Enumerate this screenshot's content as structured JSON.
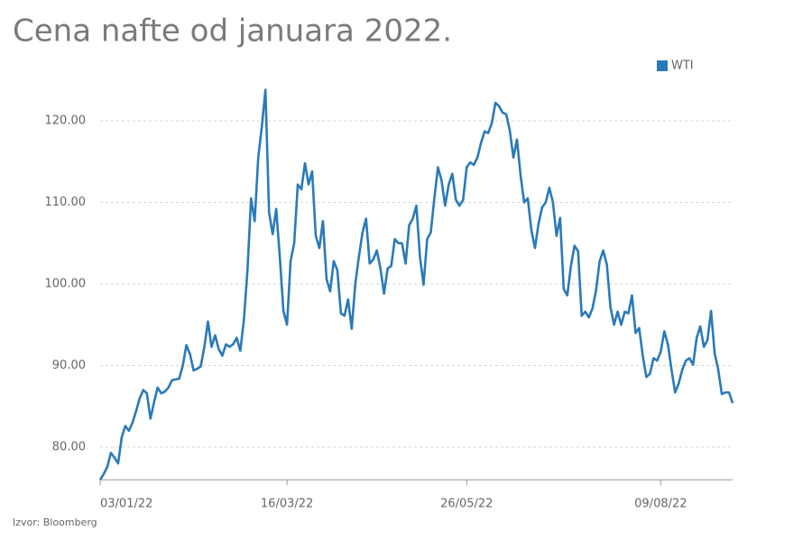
{
  "chart_data": {
    "type": "line",
    "title": "Cena nafte od januara 2022.",
    "source": "Izvor: Bloomberg",
    "categories": [
      "03/01/22",
      null,
      null,
      null,
      null,
      null,
      null,
      null,
      null,
      null,
      null,
      null,
      null,
      null,
      null,
      null,
      null,
      null,
      null,
      null,
      null,
      null,
      null,
      null,
      null,
      null,
      null,
      null,
      null,
      null,
      null,
      null,
      null,
      null,
      null,
      null,
      null,
      null,
      null,
      null,
      null,
      null,
      null,
      null,
      null,
      null,
      null,
      null,
      null,
      null,
      null,
      null,
      "16/03/22",
      null,
      null,
      null,
      null,
      null,
      null,
      null,
      null,
      null,
      null,
      null,
      null,
      null,
      null,
      null,
      null,
      null,
      null,
      null,
      null,
      null,
      null,
      null,
      null,
      null,
      null,
      null,
      null,
      null,
      null,
      null,
      null,
      null,
      null,
      null,
      null,
      null,
      null,
      null,
      null,
      null,
      null,
      null,
      null,
      null,
      null,
      null,
      null,
      null,
      "26/05/22",
      null,
      null,
      null,
      null,
      null,
      null,
      null,
      null,
      null,
      null,
      null,
      null,
      null,
      null,
      null,
      null,
      null,
      null,
      null,
      null,
      null,
      null,
      null,
      null,
      null,
      null,
      null,
      null,
      null,
      null,
      null,
      null,
      null,
      null,
      null,
      null,
      null,
      null,
      null,
      null,
      null,
      null,
      null,
      null,
      null,
      null,
      null,
      null,
      null,
      null,
      null,
      null,
      null,
      "09/08/22",
      null,
      null,
      null,
      null,
      null,
      null,
      null,
      null,
      null,
      null,
      null,
      null,
      null,
      null,
      null,
      null,
      null,
      null,
      null,
      null
    ],
    "series": [
      {
        "name": "WTI",
        "color": "#2a7ab9",
        "values": [
          76.0,
          76.7,
          77.6,
          79.3,
          78.7,
          78.0,
          81.2,
          82.6,
          82.0,
          83.0,
          84.4,
          86.0,
          87.0,
          86.6,
          83.5,
          85.5,
          87.3,
          86.6,
          86.8,
          87.3,
          88.2,
          88.3,
          88.4,
          90.0,
          92.5,
          91.4,
          89.4,
          89.6,
          89.9,
          92.3,
          95.4,
          92.3,
          93.7,
          92.0,
          91.2,
          92.6,
          92.3,
          92.6,
          93.4,
          91.8,
          95.6,
          101.7,
          110.5,
          107.7,
          115.5,
          119.3,
          123.8,
          108.8,
          106.1,
          109.2,
          103.3,
          96.7,
          95.0,
          102.8,
          105.0,
          112.2,
          111.6,
          114.8,
          112.2,
          113.8,
          105.9,
          104.4,
          107.7,
          100.6,
          99.1,
          102.8,
          101.7,
          96.4,
          96.1,
          98.1,
          94.5,
          100.0,
          103.3,
          106.3,
          108.0,
          102.5,
          103.0,
          104.1,
          101.9,
          98.8,
          101.9,
          102.2,
          105.5,
          105.0,
          105.0,
          102.5,
          107.2,
          108.0,
          109.6,
          103.3,
          99.9,
          105.5,
          106.3,
          110.5,
          114.3,
          112.7,
          109.6,
          112.2,
          113.5,
          110.3,
          109.6,
          110.3,
          114.3,
          114.9,
          114.6,
          115.5,
          117.3,
          118.7,
          118.5,
          119.7,
          122.2,
          121.8,
          121.0,
          120.8,
          118.8,
          115.5,
          117.7,
          113.3,
          110.0,
          110.5,
          106.6,
          104.4,
          107.4,
          109.4,
          110.0,
          111.8,
          110.0,
          105.9,
          108.1,
          99.4,
          98.6,
          102.2,
          104.7,
          104.0,
          96.1,
          96.6,
          95.9,
          97.0,
          99.2,
          102.8,
          104.1,
          102.4,
          97.2,
          95.0,
          96.6,
          95.0,
          96.6,
          96.4,
          98.6,
          94.0,
          94.6,
          91.2,
          88.6,
          89.0,
          90.9,
          90.6,
          91.7,
          94.2,
          92.6,
          89.5,
          86.7,
          87.8,
          89.5,
          90.6,
          90.9,
          90.1,
          93.4,
          94.8,
          92.3,
          93.1,
          96.7,
          91.5,
          89.5,
          86.5,
          86.7,
          86.7,
          85.4
        ]
      }
    ],
    "ylim": [
      76,
      125
    ],
    "yticks": [
      {
        "value": 80,
        "label": "80.00"
      },
      {
        "value": 90,
        "label": "90.00"
      },
      {
        "value": 100,
        "label": "100.00"
      },
      {
        "value": 110,
        "label": "110.00"
      },
      {
        "value": 120,
        "label": "120.00"
      }
    ],
    "grid": true,
    "legend": "top-right"
  }
}
